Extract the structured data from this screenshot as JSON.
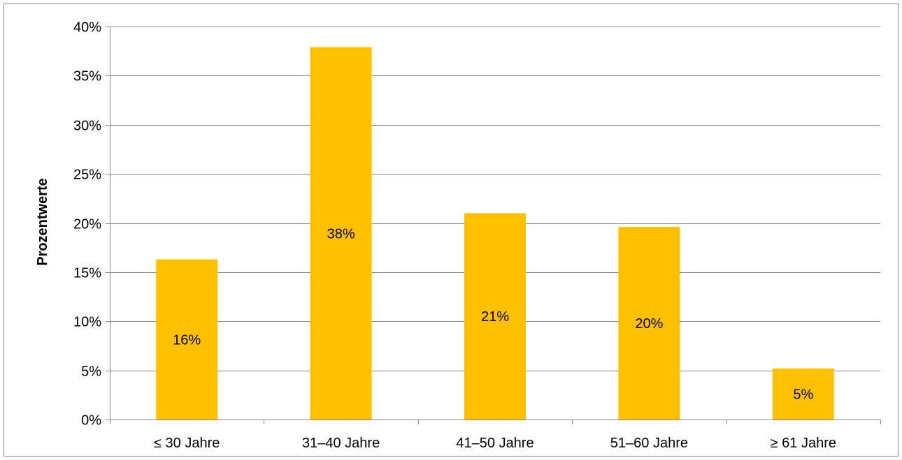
{
  "chart_data": {
    "type": "bar",
    "title": "",
    "xlabel": "",
    "ylabel": "Prozentwerte",
    "categories": [
      "≤ 30 Jahre",
      "31–40 Jahre",
      "41–50 Jahre",
      "51–60 Jahre",
      "≥ 61 Jahre"
    ],
    "values": [
      16.3,
      37.9,
      21.0,
      19.6,
      5.2
    ],
    "data_labels": [
      "16%",
      "38%",
      "21%",
      "20%",
      "5%"
    ],
    "yticks": [
      "0%",
      "5%",
      "10%",
      "15%",
      "20%",
      "25%",
      "30%",
      "35%",
      "40%"
    ],
    "ytick_values": [
      0,
      5,
      10,
      15,
      20,
      25,
      30,
      35,
      40
    ],
    "ylim": [
      0,
      40
    ],
    "grid": true,
    "legend": "none",
    "bar_color": "#FFC000",
    "grid_color": "#868686"
  }
}
